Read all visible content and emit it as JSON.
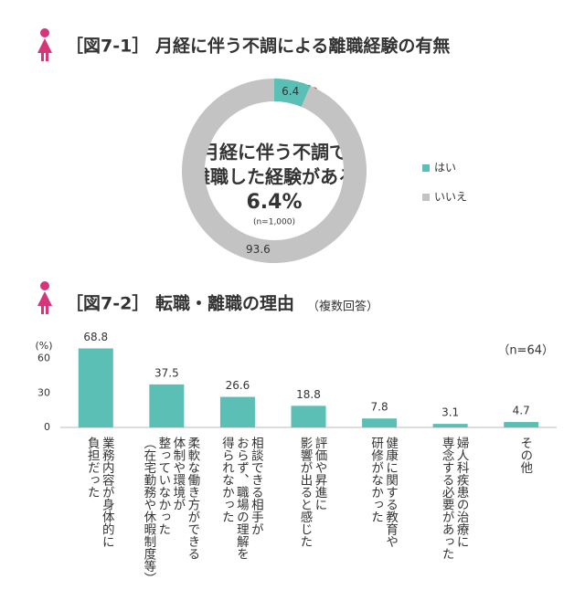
{
  "chart_data": [
    {
      "type": "donut",
      "title": "［図7-1］ 月経に伴う不調による離職経験の有無",
      "center_lines": [
        "月経に伴う不調で",
        "離職した経験がある"
      ],
      "center_value": "6.4%",
      "center_note": "(n=1,000)",
      "categories": [
        "はい",
        "いいえ"
      ],
      "values": [
        6.4,
        93.6
      ],
      "colors": [
        "#5bbfb5",
        "#c3c3c3"
      ],
      "legend": "right"
    },
    {
      "type": "bar",
      "title": "［図7-2］ 転職・離職の理由",
      "subtitle": "（複数回答）",
      "y_label": "(%)",
      "note": "（n=64）",
      "categories": [
        "業務内容が身体的に\n負担だった",
        "柔軟な働き方ができる\n体制や環境が\n整っていなかった\n（在宅勤務や休暇制度等）",
        "相談できる相手が\nおらず、職場の理解を\n得られなかった",
        "評価や昇進に\n影響が出ると感じた",
        "健康に関する教育や\n研修がなかった",
        "婦人科疾患の治療に\n専念する必要があった",
        "その他"
      ],
      "values": [
        68.8,
        37.5,
        26.6,
        18.8,
        7.8,
        3.1,
        4.7
      ],
      "color": "#5bbfb5",
      "ylim": [
        0,
        70
      ],
      "yticks": [
        0,
        30,
        60
      ],
      "grid": false
    }
  ]
}
